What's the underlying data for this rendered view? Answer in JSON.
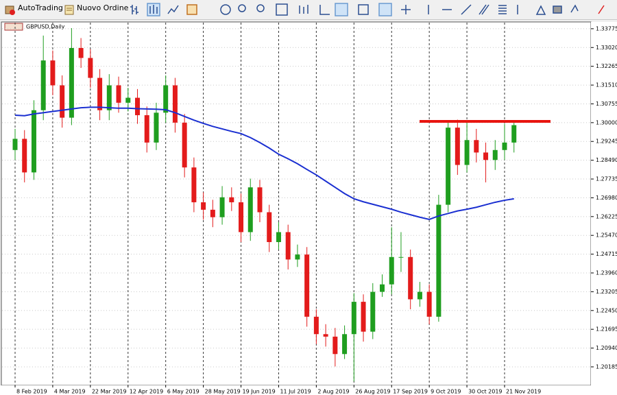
{
  "toolbar": {
    "autotrading": "AutoTrading",
    "new_order": "Nuovo Ordine"
  },
  "chart_data": {
    "type": "candlestick",
    "title": "GBPUSD,Daily",
    "categories": [
      "8 Feb 2019",
      null,
      null,
      null,
      "4 Mar 2019",
      null,
      null,
      null,
      "22 Mar 2019",
      null,
      null,
      null,
      "12 Apr 2019",
      null,
      null,
      null,
      "6 May 2019",
      null,
      null,
      null,
      "28 May 2019",
      null,
      null,
      null,
      "19 Jun 2019",
      null,
      null,
      null,
      "11 Jul 2019",
      null,
      null,
      null,
      "2 Aug 2019",
      null,
      null,
      null,
      "26 Aug 2019",
      null,
      null,
      null,
      "17 Sep 2019",
      null,
      null,
      null,
      "9 Oct 2019",
      null,
      null,
      null,
      "30 Oct 2019",
      null,
      null,
      null,
      "21 Nov 2019",
      null
    ],
    "open": [
      1.289,
      1.2935,
      1.28,
      1.305,
      1.325,
      1.315,
      1.302,
      1.33,
      1.326,
      1.318,
      1.305,
      1.315,
      1.308,
      1.31,
      1.303,
      1.292,
      1.304,
      1.315,
      1.3,
      1.282,
      1.268,
      1.265,
      1.262,
      1.27,
      1.268,
      1.256,
      1.274,
      1.264,
      1.252,
      1.256,
      1.245,
      1.247,
      1.222,
      1.215,
      1.214,
      1.207,
      1.215,
      1.228,
      1.216,
      1.232,
      1.235,
      1.246,
      1.246,
      1.229,
      1.232,
      1.222,
      1.267,
      1.298,
      1.283,
      1.293,
      1.288,
      1.285,
      1.289,
      1.292
    ],
    "high": [
      1.2975,
      1.297,
      1.309,
      1.335,
      1.329,
      1.319,
      1.338,
      1.334,
      1.3295,
      1.3215,
      1.3195,
      1.3185,
      1.314,
      1.3135,
      1.3065,
      1.308,
      1.319,
      1.318,
      1.3035,
      1.286,
      1.272,
      1.269,
      1.2745,
      1.274,
      1.2715,
      1.2775,
      1.277,
      1.267,
      1.26,
      1.259,
      1.251,
      1.25,
      1.225,
      1.219,
      1.2175,
      1.2185,
      1.2315,
      1.231,
      1.2355,
      1.239,
      1.258,
      1.256,
      1.249,
      1.236,
      1.235,
      1.271,
      1.301,
      1.3012,
      1.3005,
      1.2975,
      1.292,
      1.293,
      1.2995,
      1.301
    ],
    "low": [
      1.285,
      1.276,
      1.277,
      1.301,
      1.311,
      1.298,
      1.299,
      1.322,
      1.314,
      1.301,
      1.301,
      1.304,
      1.3045,
      1.2995,
      1.288,
      1.289,
      1.3,
      1.296,
      1.278,
      1.264,
      1.261,
      1.258,
      1.259,
      1.2645,
      1.252,
      1.2525,
      1.26,
      1.248,
      1.249,
      1.241,
      1.242,
      1.218,
      1.211,
      1.21,
      1.202,
      1.205,
      1.196,
      1.212,
      1.213,
      1.23,
      1.231,
      1.24,
      1.225,
      1.226,
      1.219,
      1.22,
      1.264,
      1.279,
      1.28,
      1.284,
      1.276,
      1.281,
      1.285,
      1.288
    ],
    "close": [
      1.2935,
      1.28,
      1.305,
      1.325,
      1.315,
      1.302,
      1.33,
      1.326,
      1.318,
      1.305,
      1.315,
      1.308,
      1.31,
      1.303,
      1.292,
      1.304,
      1.315,
      1.3,
      1.282,
      1.268,
      1.265,
      1.262,
      1.27,
      1.268,
      1.256,
      1.274,
      1.264,
      1.252,
      1.256,
      1.245,
      1.247,
      1.222,
      1.215,
      1.214,
      1.207,
      1.215,
      1.228,
      1.216,
      1.232,
      1.235,
      1.246,
      1.246,
      1.229,
      1.232,
      1.222,
      1.267,
      1.298,
      1.283,
      1.293,
      1.288,
      1.285,
      1.289,
      1.292,
      1.299
    ],
    "up_color": "#1f9e1f",
    "down_color": "#e31b1b",
    "ma": {
      "color": "#1a2fd1",
      "values": [
        1.303,
        1.3028,
        1.3035,
        1.304,
        1.3045,
        1.305,
        1.3055,
        1.306,
        1.3062,
        1.3062,
        1.306,
        1.3058,
        1.3058,
        1.3056,
        1.3055,
        1.3054,
        1.3052,
        1.304,
        1.3025,
        1.301,
        1.2997,
        1.2985,
        1.2975,
        1.2965,
        1.2956,
        1.294,
        1.292,
        1.2898,
        1.2873,
        1.2855,
        1.2835,
        1.2812,
        1.279,
        1.2765,
        1.274,
        1.2715,
        1.2694,
        1.2682,
        1.2672,
        1.2662,
        1.2652,
        1.264,
        1.263,
        1.262,
        1.2611,
        1.2625,
        1.2635,
        1.2645,
        1.2652,
        1.266,
        1.267,
        1.268,
        1.2688,
        1.2694
      ]
    },
    "hline": {
      "value": 1.3005,
      "color": "#e8150f"
    },
    "ylim": [
      1.1944,
      1.3402
    ],
    "yticks": [
      {
        "value": 1.20185,
        "label": "1.20185"
      },
      {
        "value": 1.2094,
        "label": "1.20940"
      },
      {
        "value": 1.21695,
        "label": "1.21695"
      },
      {
        "value": 1.2245,
        "label": "1.22450"
      },
      {
        "value": 1.23205,
        "label": "1.23205"
      },
      {
        "value": 1.2396,
        "label": "1.23960"
      },
      {
        "value": 1.24715,
        "label": "1.24715"
      },
      {
        "value": 1.2547,
        "label": "1.25470"
      },
      {
        "value": 1.26225,
        "label": "1.26225"
      },
      {
        "value": 1.2698,
        "label": "1.26980"
      },
      {
        "value": 1.27735,
        "label": "1.27735"
      },
      {
        "value": 1.2849,
        "label": "1.28490"
      },
      {
        "value": 1.29245,
        "label": "1.29245"
      },
      {
        "value": 1.3,
        "label": "1.30000"
      },
      {
        "value": 1.30755,
        "label": "1.30755"
      },
      {
        "value": 1.3151,
        "label": "1.31510"
      },
      {
        "value": 1.32265,
        "label": "1.32265"
      },
      {
        "value": 1.3302,
        "label": "1.33020"
      },
      {
        "value": 1.33775,
        "label": "1.33775"
      }
    ],
    "grid": true
  }
}
